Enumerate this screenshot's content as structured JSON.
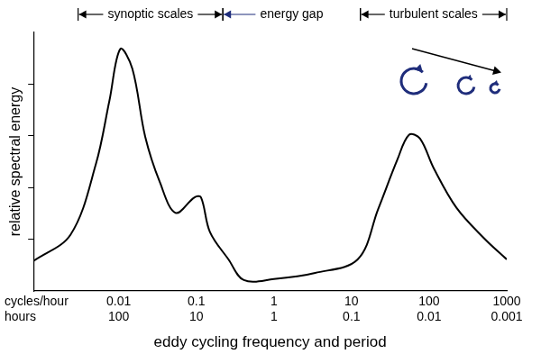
{
  "chart_data": {
    "type": "line",
    "xlabel": "eddy cycling frequency and period",
    "ylabel": "relative spectral energy",
    "xtick_rows": [
      "cycles/hour",
      "hours"
    ],
    "log": "x",
    "grid": false,
    "tick_labels": "x",
    "color": "#000000",
    "x": [
      0.0008,
      0.0024,
      0.0051,
      0.0076,
      0.0105,
      0.015,
      0.022,
      0.034,
      0.054,
      0.095,
      0.115,
      0.15,
      0.26,
      0.41,
      1,
      3.4,
      12,
      22,
      39,
      55,
      76,
      115,
      225,
      510,
      1000
    ],
    "values": [
      0.58,
      1.09,
      2.46,
      3.68,
      4.68,
      4.3,
      2.98,
      2.1,
      1.51,
      1.81,
      1.81,
      1.14,
      0.61,
      0.21,
      0.23,
      0.35,
      0.61,
      1.58,
      2.54,
      3.02,
      2.95,
      2.37,
      1.61,
      1.02,
      0.61
    ],
    "xlim": [
      0.0008,
      1000
    ],
    "xticks": [
      {
        "value": 0.01,
        "label": [
          "0.01",
          "100"
        ]
      },
      {
        "value": 0.1,
        "label": [
          "0.1",
          "10"
        ]
      },
      {
        "value": 1,
        "label": [
          "1",
          "1"
        ]
      },
      {
        "value": 10,
        "label": [
          "10",
          "0.1"
        ]
      },
      {
        "value": 100,
        "label": [
          "100",
          "0.01"
        ]
      },
      {
        "value": 1000,
        "label": [
          "1000",
          "0.001"
        ]
      }
    ],
    "ylim": [
      0,
      5
    ],
    "yticks": [
      1,
      2,
      3,
      4
    ],
    "annotations": [
      {
        "text": "synoptic scales",
        "x_range": [
          0.003,
          0.22
        ]
      },
      {
        "text": "energy gap",
        "x_range": [
          0.22,
          13
        ]
      },
      {
        "text": "turbulent scales",
        "x_range": [
          13,
          1000
        ]
      }
    ]
  }
}
